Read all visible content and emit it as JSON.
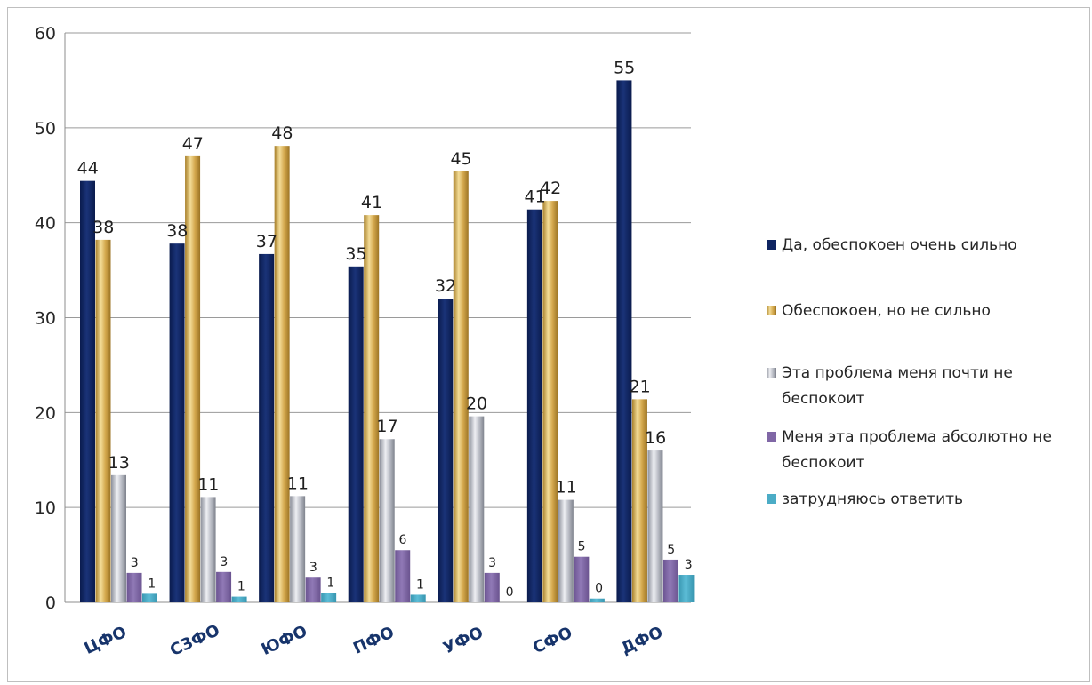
{
  "chart_data": {
    "type": "bar",
    "categories": [
      "ЦФО",
      "СЗФО",
      "ЮФО",
      "ПФО",
      "УФО",
      "СФО",
      "ДФО"
    ],
    "ylim": [
      0,
      60
    ],
    "yticks": [
      0,
      10,
      20,
      30,
      40,
      50,
      60
    ],
    "grid": true,
    "legend_position": "right",
    "series": [
      {
        "name": "Да, обеспокоен очень сильно",
        "color": "#0e2461",
        "values": [
          44.4,
          37.8,
          36.7,
          35.4,
          32.0,
          41.4,
          55.0
        ],
        "labels": [
          "44",
          "38",
          "37",
          "35",
          "32",
          "41",
          "55"
        ]
      },
      {
        "name": "Обеспокоен, но не сильно",
        "color": "#d9b25a",
        "values": [
          38.2,
          47.0,
          48.1,
          40.8,
          45.4,
          42.3,
          21.4
        ],
        "labels": [
          "38",
          "47",
          "48",
          "41",
          "45",
          "42",
          "21"
        ]
      },
      {
        "name": "Эта проблема меня почти не беспокоит",
        "color": "#a9acb6",
        "values": [
          13.4,
          11.1,
          11.2,
          17.2,
          19.6,
          10.8,
          16.0
        ],
        "labels": [
          "13",
          "11",
          "11",
          "17",
          "20",
          "11",
          "16"
        ]
      },
      {
        "name": "Меня эта проблема абсолютно не беспокоит",
        "color": "#8067a6",
        "values": [
          3.1,
          3.2,
          2.6,
          5.5,
          3.1,
          4.8,
          4.5
        ],
        "labels": [
          "3",
          "3",
          "3",
          "6",
          "3",
          "5",
          "5"
        ]
      },
      {
        "name": "затрудняюсь ответить",
        "color": "#4bacc6",
        "values": [
          0.9,
          0.6,
          1.0,
          0.8,
          0.0,
          0.4,
          2.9
        ],
        "labels": [
          "1",
          "1",
          "1",
          "1",
          "0",
          "0",
          "3"
        ]
      }
    ]
  },
  "legend": {
    "items": [
      {
        "label": "Да, обеспокоен очень сильно"
      },
      {
        "label": "Обеспокоен, но не сильно"
      },
      {
        "label": "Эта проблема меня почти не беспокоит"
      },
      {
        "label": "Меня эта проблема абсолютно не беспокоит"
      },
      {
        "label": "затрудняюсь ответить"
      }
    ]
  }
}
